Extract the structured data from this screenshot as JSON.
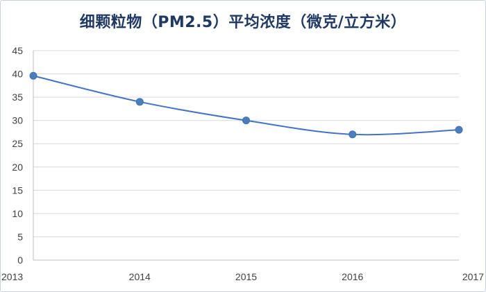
{
  "chart_data": {
    "type": "line",
    "title": "细颗粒物（PM2.5）平均浓度（微克/立方米）",
    "xlabel": "",
    "ylabel": "",
    "categories": [
      "2013",
      "2014",
      "2015",
      "2016",
      "2017"
    ],
    "series": [
      {
        "values": [
          39.6,
          34,
          30,
          27,
          28
        ]
      }
    ],
    "ylim": [
      0,
      45
    ],
    "yticks": [
      0,
      5,
      10,
      15,
      20,
      25,
      30,
      35,
      40,
      45
    ],
    "grid": true,
    "legend": "none",
    "smooth": true,
    "colors": {
      "line": "#4472c4",
      "marker": "#4a7ebf",
      "title": "#1f3864"
    }
  }
}
